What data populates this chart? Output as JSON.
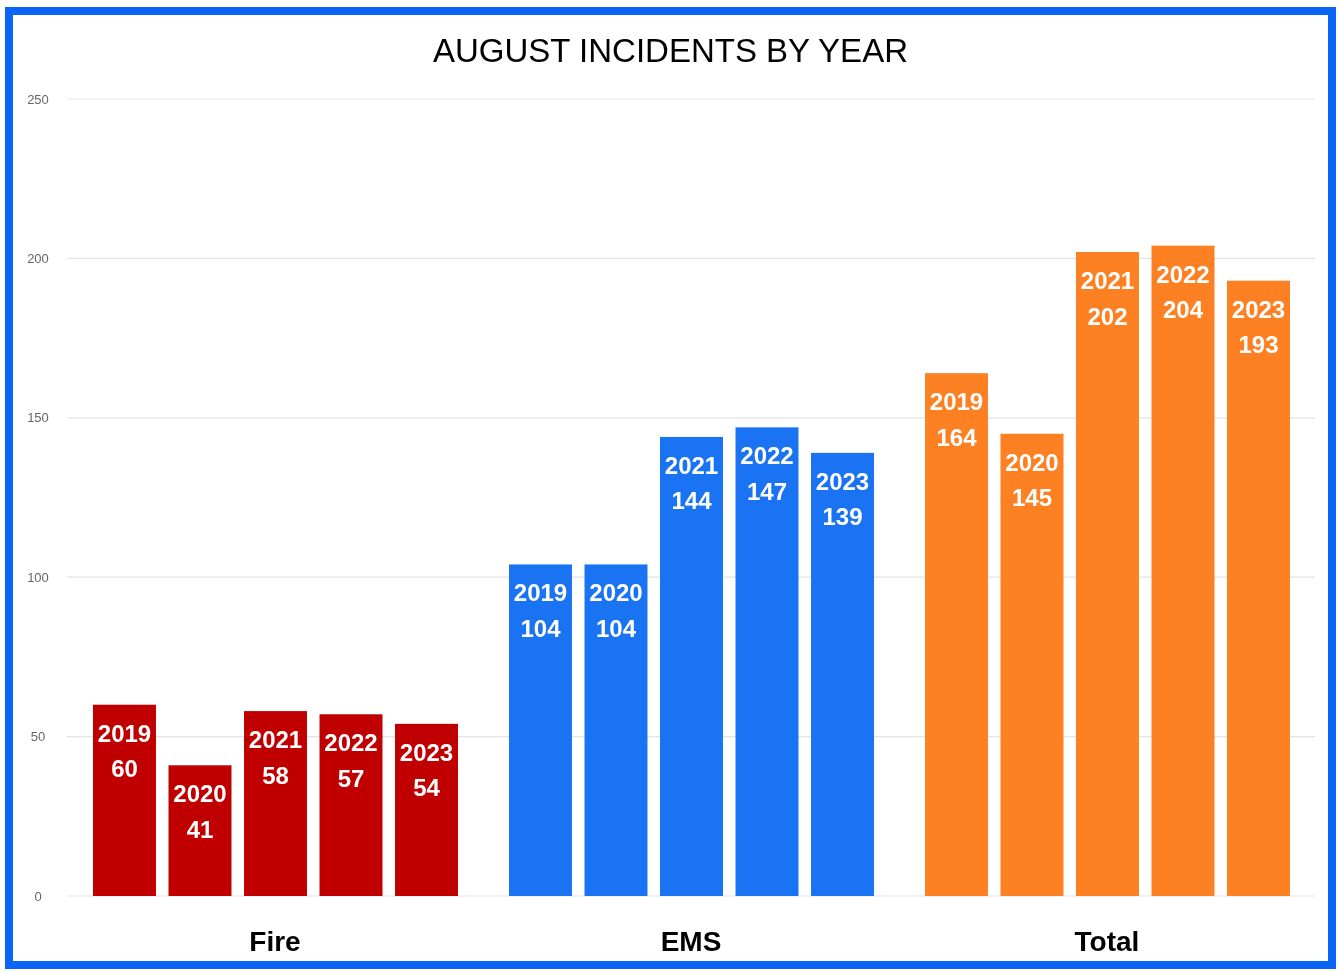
{
  "chart_data": {
    "type": "bar",
    "title": "AUGUST INCIDENTS BY YEAR",
    "categories": [
      "Fire",
      "EMS",
      "Total"
    ],
    "series": [
      {
        "name": "2019",
        "colors": [
          "#c00000",
          "#1a73f2",
          "#fd8022"
        ],
        "values": [
          60,
          104,
          164
        ]
      },
      {
        "name": "2020",
        "colors": [
          "#c00000",
          "#1a73f2",
          "#fd8022"
        ],
        "values": [
          41,
          104,
          145
        ]
      },
      {
        "name": "2021",
        "colors": [
          "#c00000",
          "#1a73f2",
          "#fd8022"
        ],
        "values": [
          58,
          144,
          202
        ]
      },
      {
        "name": "2022",
        "colors": [
          "#c00000",
          "#1a73f2",
          "#fd8022"
        ],
        "values": [
          57,
          147,
          204
        ]
      },
      {
        "name": "2023",
        "colors": [
          "#c00000",
          "#1a73f2",
          "#fd8022"
        ],
        "values": [
          54,
          139,
          193
        ]
      }
    ],
    "ylim": [
      0,
      250
    ],
    "yticks": [
      0,
      50,
      100,
      150,
      200,
      250
    ],
    "grid": "y",
    "legend": false,
    "data_labels": true
  }
}
